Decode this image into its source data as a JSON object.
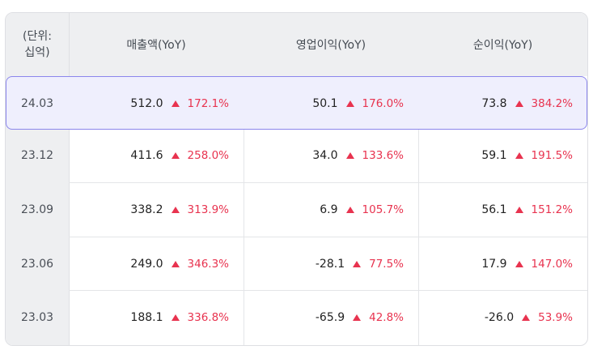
{
  "header": {
    "unit": "(단위:\n십억)",
    "unit_line1": "(단위:",
    "unit_line2": "십억)",
    "revenue": "매출액(YoY)",
    "operating_profit": "영업이익(YoY)",
    "net_profit": "순이익(YoY)"
  },
  "rows": [
    {
      "period": "24.03",
      "revenue": "512.0",
      "revenue_yoy": "172.1%",
      "op": "50.1",
      "op_yoy": "176.0%",
      "net": "73.8",
      "net_yoy": "384.2%"
    },
    {
      "period": "23.12",
      "revenue": "411.6",
      "revenue_yoy": "258.0%",
      "op": "34.0",
      "op_yoy": "133.6%",
      "net": "59.1",
      "net_yoy": "191.5%"
    },
    {
      "period": "23.09",
      "revenue": "338.2",
      "revenue_yoy": "313.9%",
      "op": "6.9",
      "op_yoy": "105.7%",
      "net": "56.1",
      "net_yoy": "151.2%"
    },
    {
      "period": "23.06",
      "revenue": "249.0",
      "revenue_yoy": "346.3%",
      "op": "-28.1",
      "op_yoy": "77.5%",
      "net": "17.9",
      "net_yoy": "147.0%"
    },
    {
      "period": "23.03",
      "revenue": "188.1",
      "revenue_yoy": "336.8%",
      "op": "-65.9",
      "op_yoy": "42.8%",
      "net": "-26.0",
      "net_yoy": "53.9%"
    }
  ],
  "colors": {
    "up": "#e8334f",
    "highlight_border": "#8b86ec",
    "highlight_bg": "#efeffd"
  },
  "icons": {
    "yoy_change": "triangle-up-icon"
  }
}
